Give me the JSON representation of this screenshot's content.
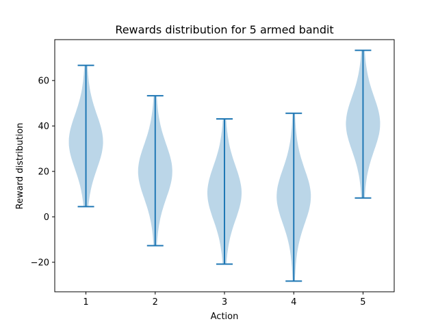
{
  "chart_data": {
    "type": "violin",
    "title": "Rewards distribution for 5 armed bandit",
    "xlabel": "Action",
    "ylabel": "Reward distribution",
    "categories": [
      "1",
      "2",
      "3",
      "4",
      "5"
    ],
    "ylim": [
      -33,
      78
    ],
    "yticks": [
      -20,
      0,
      20,
      40,
      60
    ],
    "grid": false,
    "fill_color": "#1f77b4",
    "fill_opacity": 0.3,
    "line_color": "#1f77b4",
    "violins": [
      {
        "category": "1",
        "min": 4.5,
        "max": 66.7,
        "mode": 33,
        "spread": 7
      },
      {
        "category": "2",
        "min": -12.7,
        "max": 53.3,
        "mode": 20,
        "spread": 7
      },
      {
        "category": "3",
        "min": -20.8,
        "max": 43.1,
        "mode": 10.5,
        "spread": 7
      },
      {
        "category": "4",
        "min": -28.3,
        "max": 45.6,
        "mode": 9,
        "spread": 7
      },
      {
        "category": "5",
        "min": 8.3,
        "max": 73.3,
        "mode": 41,
        "spread": 7
      }
    ]
  }
}
